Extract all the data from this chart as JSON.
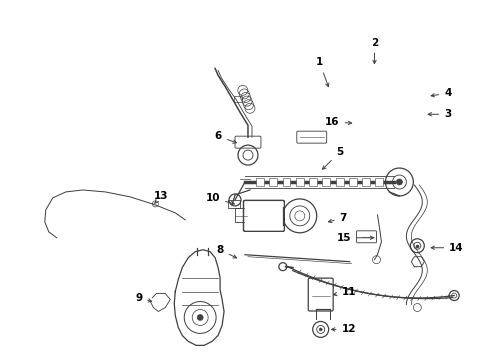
{
  "bg_color": "#ffffff",
  "line_color": "#404040",
  "figsize": [
    4.89,
    3.6
  ],
  "dpi": 100
}
